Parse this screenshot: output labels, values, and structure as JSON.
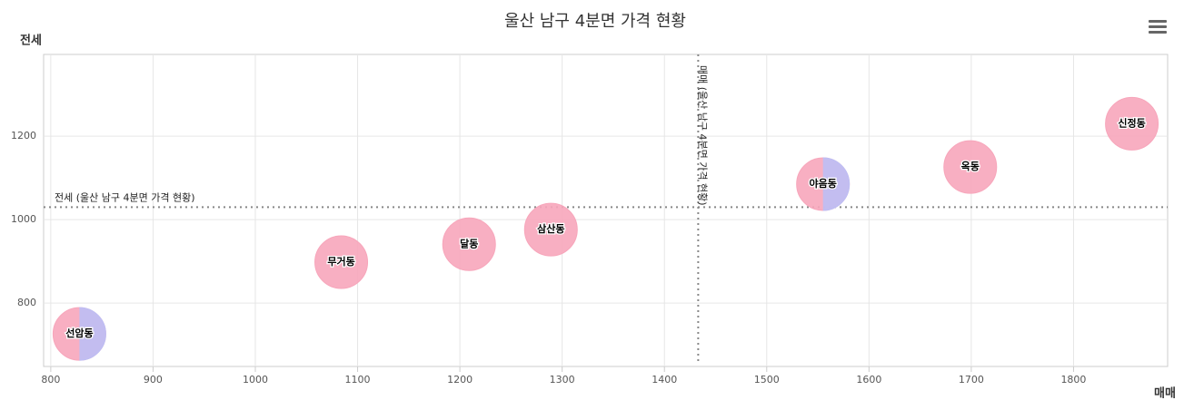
{
  "chart_data": {
    "type": "bubble",
    "title": "울산 남구 4분면 가격 현황",
    "x_label": "매매",
    "y_label": "전세",
    "xlim": [
      793,
      1892
    ],
    "ylim": [
      648,
      1396
    ],
    "xticks": [
      800,
      900,
      1000,
      1100,
      1200,
      1300,
      1400,
      1500,
      1600,
      1700,
      1800
    ],
    "yticks": [
      800,
      1000,
      1200
    ],
    "grid": true,
    "series": [
      {
        "color": "#f7a6bb",
        "labels": [
          "선암동",
          "무거동",
          "달동",
          "삼산동",
          "야음동",
          "옥동",
          "신정동"
        ],
        "x": [
          828,
          1084,
          1209,
          1289,
          1555,
          1699,
          1857
        ],
        "values": [
          726,
          898,
          941,
          976,
          1085,
          1126,
          1230
        ]
      },
      {
        "color": "#bcbff5",
        "x": [
          828,
          1555
        ],
        "values": [
          726,
          1085
        ]
      }
    ],
    "plot_lines": [
      {
        "axis": "x",
        "value": 1433,
        "label": "매매 (울산 남구 4분면 가격 현황)"
      },
      {
        "axis": "y",
        "value": 1030,
        "label": "전세 (울산 남구 4분면 가격 현황)"
      }
    ]
  }
}
